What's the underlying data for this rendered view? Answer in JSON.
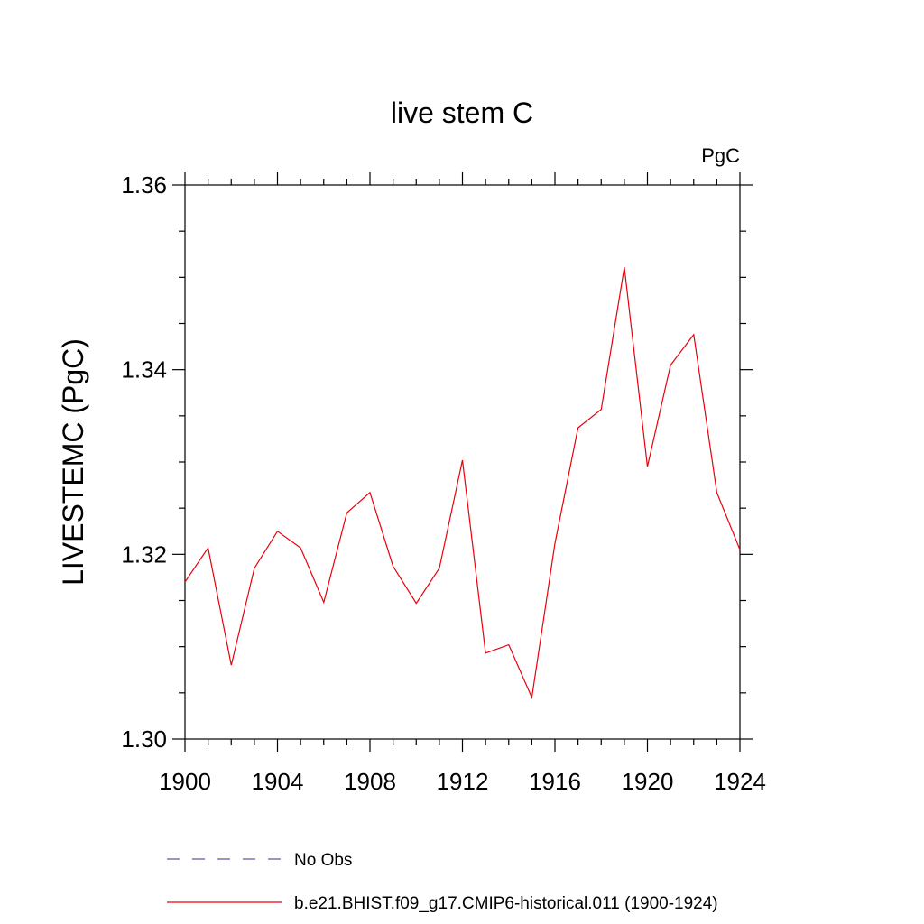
{
  "chart_data": {
    "type": "line",
    "title": "live stem C",
    "units_label": "PgC",
    "ylabel": "LIVESTEMC  (PgC)",
    "xlabel": "",
    "xlim": [
      1900,
      1924
    ],
    "ylim": [
      1.3,
      1.36
    ],
    "x_ticks": [
      1900,
      1904,
      1908,
      1912,
      1916,
      1920,
      1924
    ],
    "x_tick_labels": [
      "1900",
      "1904",
      "1908",
      "1912",
      "1916",
      "1920",
      "1924"
    ],
    "y_ticks": [
      1.3,
      1.32,
      1.34,
      1.36
    ],
    "y_tick_labels": [
      "1.30",
      "1.32",
      "1.34",
      "1.36"
    ],
    "x_minor_step": 1,
    "y_minor_step": 0.005,
    "grid": false,
    "legend_position": "bottom",
    "series": [
      {
        "name": "b.e21.BHIST.f09_g17.CMIP6-historical.011 (1900-1924)",
        "color": "#e8000b",
        "style": "solid",
        "x": [
          1900,
          1901,
          1902,
          1903,
          1904,
          1905,
          1906,
          1907,
          1908,
          1909,
          1910,
          1911,
          1912,
          1913,
          1914,
          1915,
          1916,
          1917,
          1918,
          1919,
          1920,
          1921,
          1922,
          1923,
          1924
        ],
        "y": [
          1.317,
          1.3207,
          1.308,
          1.3185,
          1.3225,
          1.3207,
          1.3148,
          1.3245,
          1.3267,
          1.3187,
          1.3147,
          1.3185,
          1.3302,
          1.3093,
          1.3102,
          1.3045,
          1.3212,
          1.3337,
          1.3357,
          1.3511,
          1.3295,
          1.3405,
          1.3438,
          1.3267,
          1.3205
        ]
      }
    ],
    "legend": [
      {
        "label": "No Obs",
        "color": "#5a5aa8",
        "style": "dashed"
      },
      {
        "label": "b.e21.BHIST.f09_g17.CMIP6-historical.011 (1900-1924)",
        "color": "#e8000b",
        "style": "solid"
      }
    ]
  }
}
